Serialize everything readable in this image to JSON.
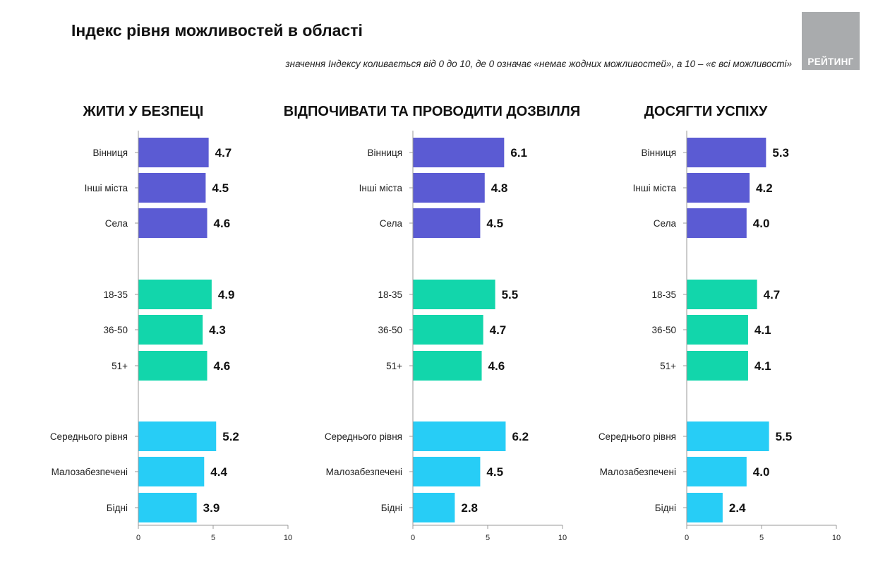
{
  "header": {
    "title": "Індекс рівня можливостей в області",
    "subtitle": "значення Індексу коливається від 0 до 10, де 0 означає «немає жодних можливостей», а 10 – «є всі можливості»",
    "logo_text": "РЕЙТИНГ"
  },
  "colors": {
    "settlement": "#5b5bd3",
    "age": "#12d6ab",
    "income": "#27cdf6",
    "logo_bg": "#a9abad"
  },
  "chart_data": [
    {
      "type": "bar",
      "orientation": "horizontal",
      "title": "ЖИТИ У БЕЗПЕЦІ",
      "categories": [
        "Вінниця",
        "Інші міста",
        "Села",
        "18-35",
        "36-50",
        "51+",
        "Середнього рівня",
        "Малозабезпечені",
        "Бідні"
      ],
      "values": [
        4.7,
        4.5,
        4.6,
        4.9,
        4.3,
        4.6,
        5.2,
        4.4,
        3.9
      ],
      "xlim": [
        0,
        10
      ],
      "xticks": [
        "0",
        "5",
        "10"
      ],
      "grid": false
    },
    {
      "type": "bar",
      "orientation": "horizontal",
      "title": "ВІДПОЧИВАТИ ТА ПРОВОДИТИ ДОЗВІЛЛЯ",
      "categories": [
        "Вінниця",
        "Інші міста",
        "Села",
        "18-35",
        "36-50",
        "51+",
        "Середнього рівня",
        "Малозабезпечені",
        "Бідні"
      ],
      "values": [
        6.1,
        4.8,
        4.5,
        5.5,
        4.7,
        4.6,
        6.2,
        4.5,
        2.8
      ],
      "xlim": [
        0,
        10
      ],
      "xticks": [
        "0",
        "5",
        "10"
      ],
      "grid": false
    },
    {
      "type": "bar",
      "orientation": "horizontal",
      "title": "ДОСЯГТИ УСПІХУ",
      "categories": [
        "Вінниця",
        "Інші міста",
        "Села",
        "18-35",
        "36-50",
        "51+",
        "Середнього рівня",
        "Малозабезпечені",
        "Бідні"
      ],
      "values": [
        5.3,
        4.2,
        4.0,
        4.7,
        4.1,
        4.1,
        5.5,
        4.0,
        2.4
      ],
      "xlim": [
        0,
        10
      ],
      "xticks": [
        "0",
        "5",
        "10"
      ],
      "grid": false
    }
  ]
}
